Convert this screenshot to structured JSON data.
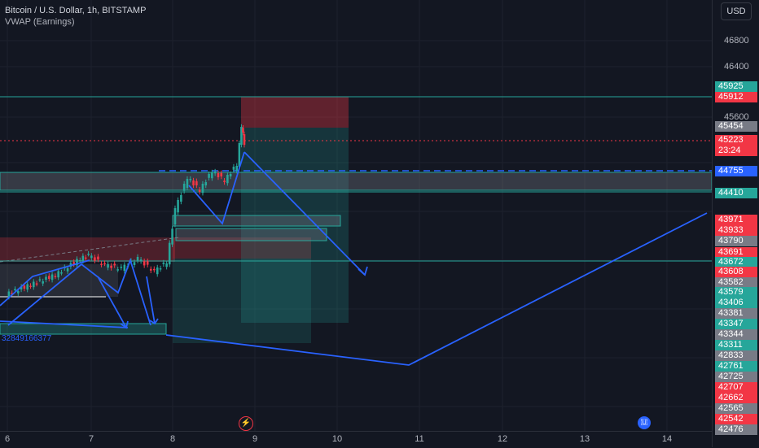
{
  "header": {
    "symbol": "Bitcoin / U.S. Dollar, 1h, BITSTAMP",
    "indicator": "VWAP (Earnings)",
    "currency": "USD"
  },
  "price_axis": {
    "ticks": [
      "46800",
      "46400",
      "45600"
    ]
  },
  "badges": [
    {
      "text": "45925",
      "color": "#26a69a"
    },
    {
      "text": "45912",
      "color": "#f23645"
    },
    {
      "text": "45454",
      "color": "#787b86"
    },
    {
      "text": "45223",
      "sub": "23:24",
      "color": "#f23645"
    },
    {
      "text": "44755",
      "color": "#2962ff"
    },
    {
      "text": "44410",
      "color": "#26a69a"
    },
    {
      "text": "43971",
      "color": "#f23645"
    },
    {
      "text": "43933",
      "color": "#f23645"
    },
    {
      "text": "43790",
      "color": "#787b86"
    },
    {
      "text": "43691",
      "color": "#f23645"
    },
    {
      "text": "43672",
      "color": "#26a69a"
    },
    {
      "text": "43608",
      "color": "#f23645"
    },
    {
      "text": "43582",
      "color": "#787b86"
    },
    {
      "text": "43579",
      "color": "#26a69a"
    },
    {
      "text": "43406",
      "color": "#26a69a"
    },
    {
      "text": "43381",
      "color": "#787b86"
    },
    {
      "text": "43347",
      "color": "#26a69a"
    },
    {
      "text": "43344",
      "color": "#787b86"
    },
    {
      "text": "43311",
      "color": "#26a69a"
    },
    {
      "text": "42833",
      "color": "#787b86"
    },
    {
      "text": "42761",
      "color": "#26a69a"
    },
    {
      "text": "42725",
      "color": "#787b86"
    },
    {
      "text": "42707",
      "color": "#f23645"
    },
    {
      "text": "42662",
      "color": "#f23645"
    },
    {
      "text": "42565",
      "color": "#787b86"
    },
    {
      "text": "42542",
      "color": "#f23645"
    },
    {
      "text": "42476",
      "color": "#787b86"
    }
  ],
  "time_axis": {
    "ticks": [
      "6",
      "7",
      "8",
      "9",
      "10",
      "11",
      "12",
      "13",
      "14"
    ]
  },
  "annotation_text": "32849166377",
  "chart_data": {
    "type": "line",
    "title": "Bitcoin / U.S. Dollar, 1h, BITSTAMP",
    "xlabel": "",
    "ylabel": "",
    "x_ticks": [
      "6",
      "7",
      "8",
      "9",
      "10",
      "11",
      "12",
      "13",
      "14"
    ],
    "y_ticks": [
      45600,
      46400,
      46800
    ],
    "series": [
      {
        "name": "Bitcoin / U.S. Dollar",
        "x": [
          6.0,
          6.3,
          6.6,
          6.9,
          7.0,
          7.2,
          7.4,
          7.6,
          7.8,
          7.95,
          8.05,
          8.2,
          8.35,
          8.5,
          8.65,
          8.8,
          8.85,
          8.88
        ],
        "y": [
          42900,
          43050,
          43200,
          43450,
          43500,
          43350,
          43300,
          43450,
          43250,
          43400,
          44200,
          44700,
          44500,
          44800,
          44650,
          44900,
          45500,
          45223
        ]
      }
    ],
    "last_price": 45223,
    "countdown": "23:24",
    "colors": {
      "up": "#26a69a",
      "down": "#f23645",
      "drawing": "#2962ff"
    }
  }
}
